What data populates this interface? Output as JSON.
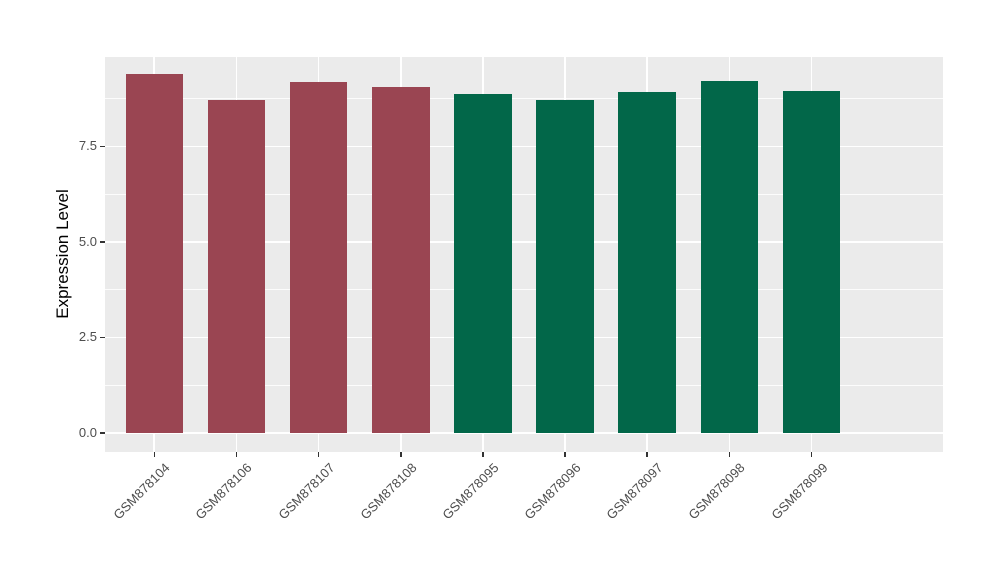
{
  "chart_data": {
    "type": "bar",
    "title": "",
    "xlabel": "",
    "ylabel": "Expression Level",
    "categories": [
      "GSM878104",
      "GSM878106",
      "GSM878107",
      "GSM878108",
      "GSM878095",
      "GSM878096",
      "GSM878097",
      "GSM878098",
      "GSM878099"
    ],
    "values": [
      9.4,
      8.72,
      9.19,
      9.05,
      8.87,
      8.72,
      8.93,
      9.21,
      8.95
    ],
    "bar_colors": [
      "#9A4552",
      "#9A4552",
      "#9A4552",
      "#9A4552",
      "#026749",
      "#026749",
      "#026749",
      "#026749",
      "#026749"
    ],
    "groups": [
      {
        "color": "#9A4552",
        "categories": [
          "GSM878104",
          "GSM878106",
          "GSM878107",
          "GSM878108"
        ]
      },
      {
        "color": "#026749",
        "categories": [
          "GSM878095",
          "GSM878096",
          "GSM878097",
          "GSM878098",
          "GSM878099"
        ]
      }
    ],
    "yticks": [
      0.0,
      2.5,
      5.0,
      7.5
    ],
    "ytick_labels": [
      "0.0",
      "2.5",
      "5.0",
      "7.5"
    ],
    "minor_yticks": [
      1.25,
      3.75,
      6.25,
      8.75
    ],
    "ylim": [
      -0.5,
      9.84
    ],
    "x_label_angle": 45,
    "grid": true,
    "legend_position": "none",
    "panel_bg": "#EBEBEB",
    "grid_color": "#FFFFFF",
    "tick_color": "#333333",
    "tick_label_color": "#4D4D4D",
    "axis_title_color": "#000000"
  }
}
